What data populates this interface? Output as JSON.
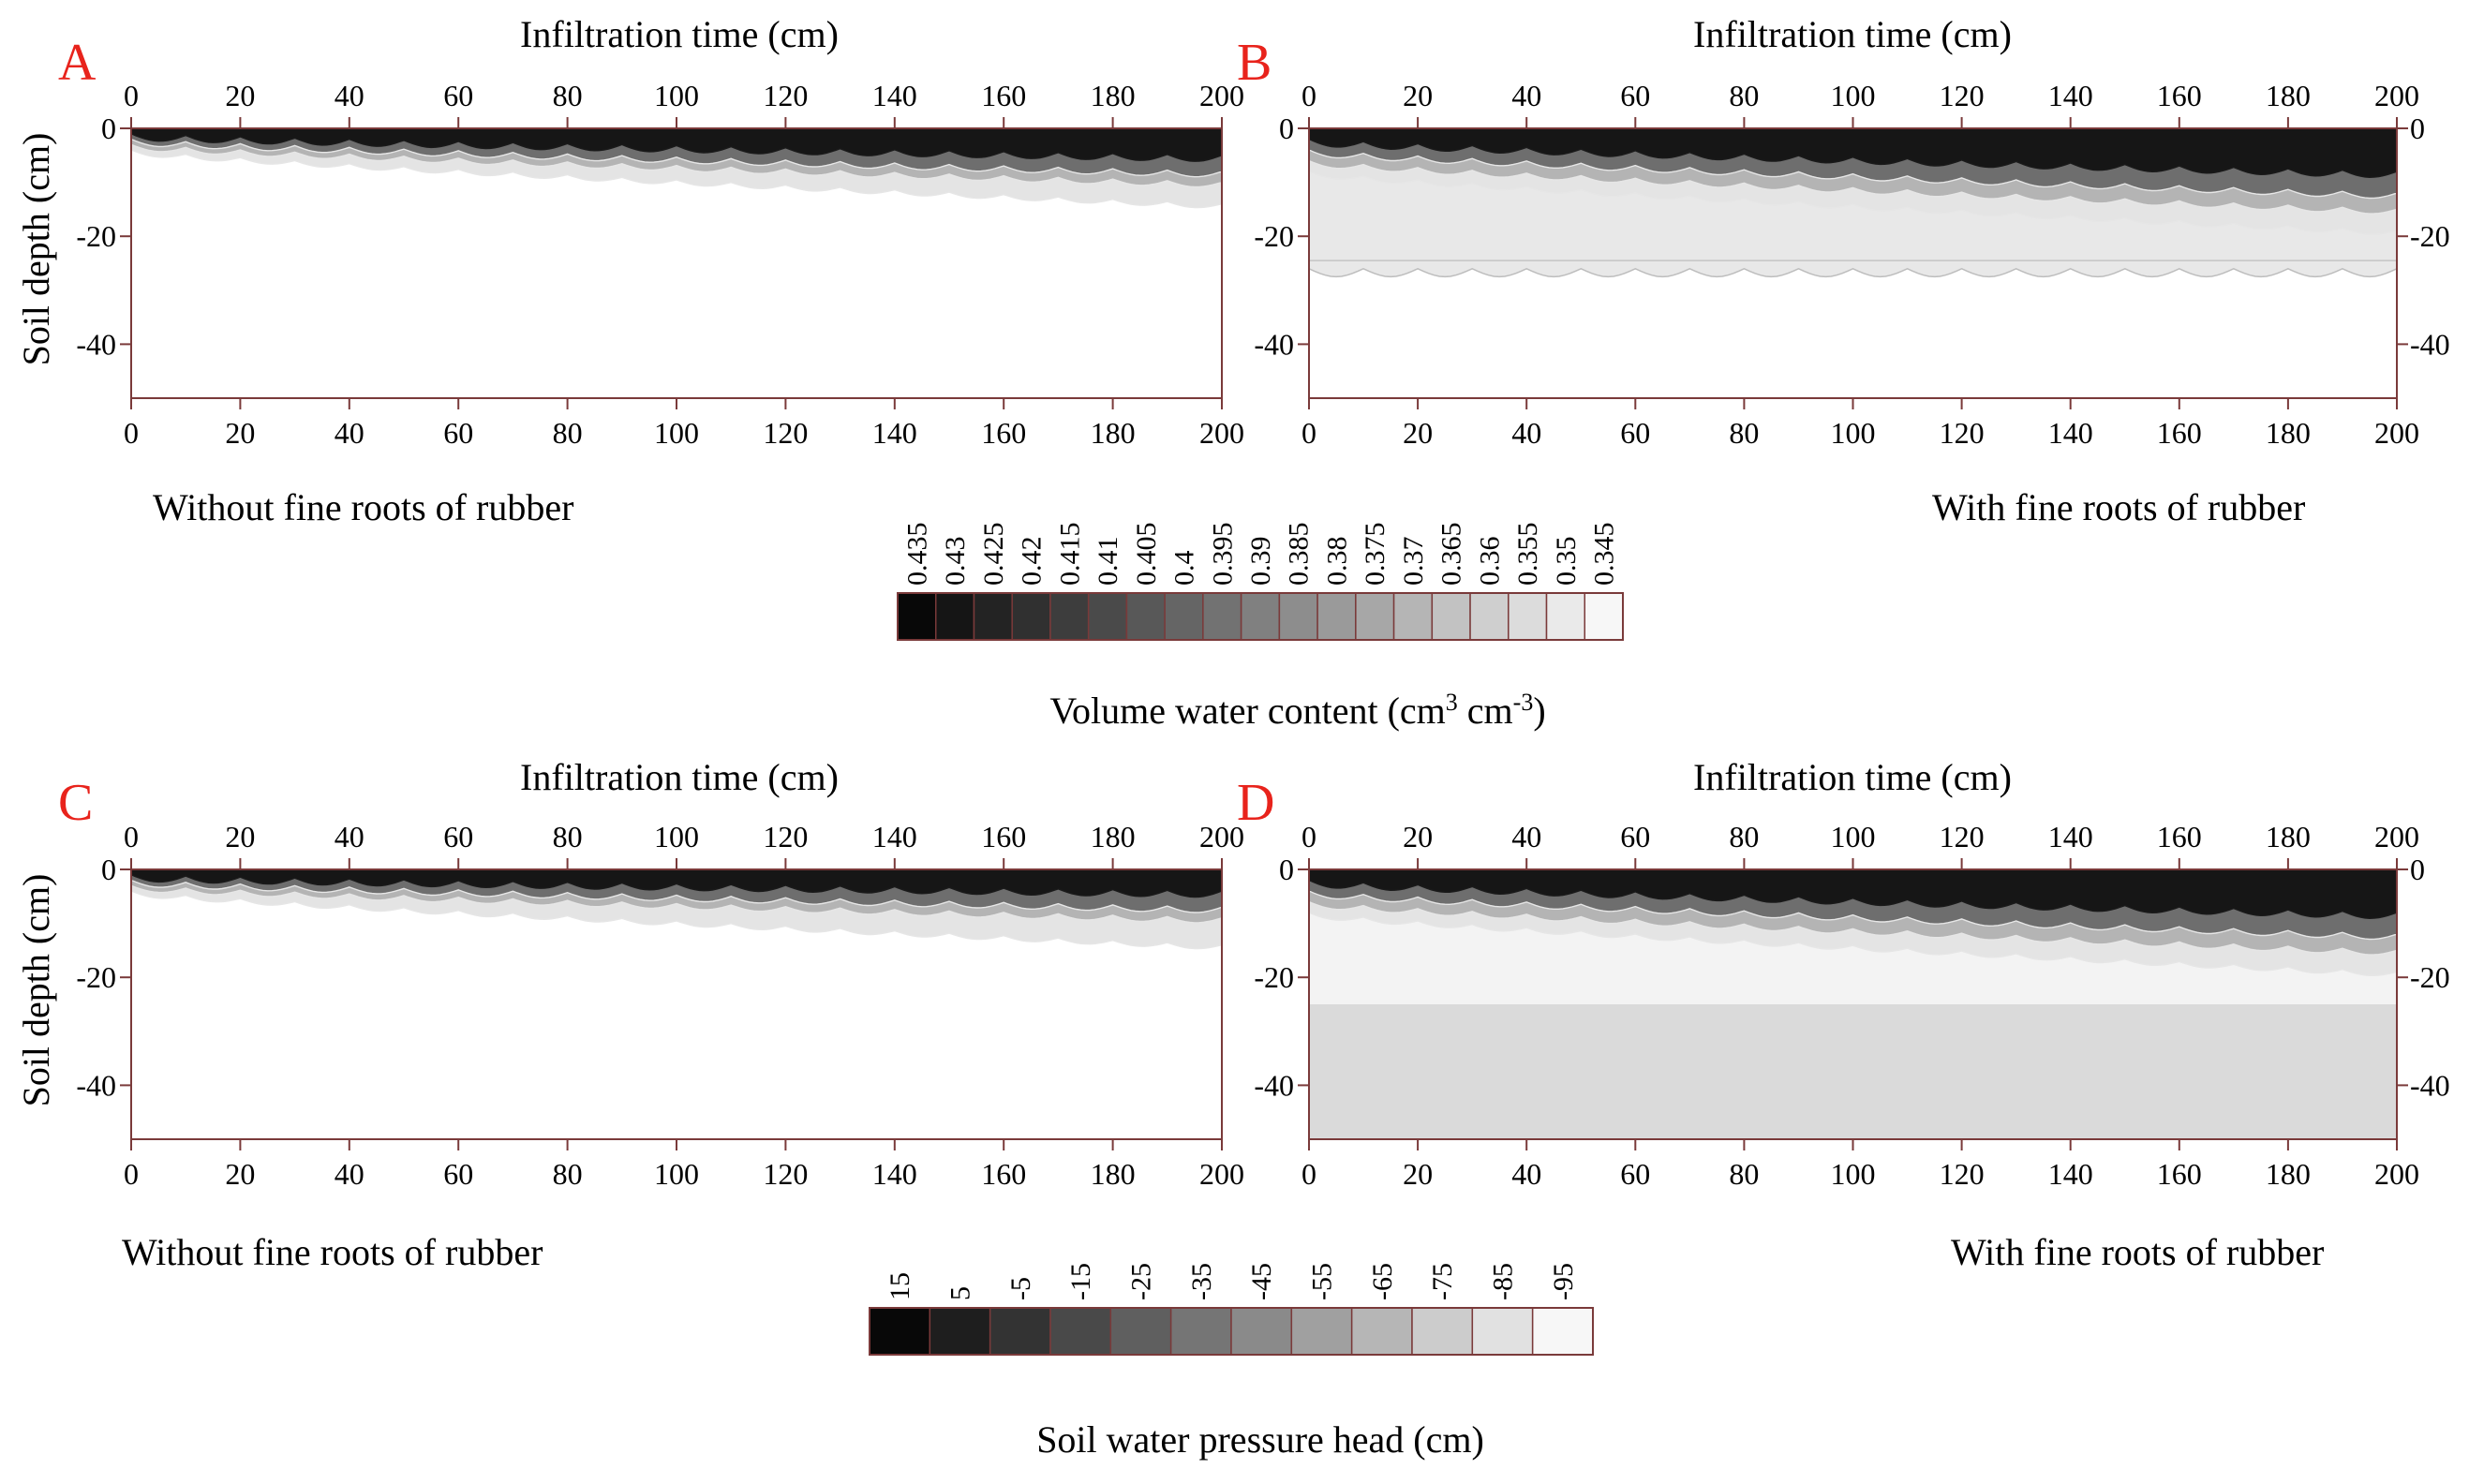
{
  "chart_data": [
    {
      "panel": "A",
      "type": "heatmap",
      "top_label": "Infiltration time (cm)",
      "ylabel": "Soil depth (cm)",
      "caption": "Without fine roots of rubber",
      "xlim": [
        0,
        200
      ],
      "ylim": [
        -50,
        0
      ],
      "x_ticks": [
        "0",
        "20",
        "40",
        "60",
        "80",
        "100",
        "120",
        "140",
        "160",
        "180",
        "200"
      ],
      "y_ticks": [
        "0",
        "-20",
        "-40"
      ],
      "y_tick_values": [
        0,
        -20,
        -40
      ],
      "right_axis": false,
      "legend": "volume_water_content",
      "front": {
        "dark": [
          1,
          5
        ],
        "mid": [
          2,
          8
        ],
        "light": [
          3,
          10
        ],
        "edge": [
          4,
          14
        ]
      },
      "subsoil": null
    },
    {
      "panel": "B",
      "type": "heatmap",
      "top_label": "Infiltration time (cm)",
      "ylabel": "",
      "caption": "With fine roots of rubber",
      "xlim": [
        0,
        200
      ],
      "ylim": [
        -50,
        0
      ],
      "x_ticks": [
        "0",
        "20",
        "40",
        "60",
        "80",
        "100",
        "120",
        "140",
        "160",
        "180",
        "200"
      ],
      "y_ticks": [
        "0",
        "-20",
        "-40"
      ],
      "y_tick_values": [
        0,
        -20,
        -40
      ],
      "right_axis": true,
      "legend": "volume_water_content",
      "front": {
        "dark": [
          2,
          8
        ],
        "mid": [
          4,
          12
        ],
        "light": [
          6,
          15
        ],
        "edge": [
          8,
          19
        ]
      },
      "subsoil": {
        "depth": -26,
        "tone": "light"
      }
    },
    {
      "panel": "C",
      "type": "heatmap",
      "top_label": "Infiltration time (cm)",
      "ylabel": "Soil depth (cm)",
      "caption": "Without fine roots of rubber",
      "xlim": [
        0,
        200
      ],
      "ylim": [
        -50,
        0
      ],
      "x_ticks": [
        "0",
        "20",
        "40",
        "60",
        "80",
        "100",
        "120",
        "140",
        "160",
        "180",
        "200"
      ],
      "y_ticks": [
        "0",
        "-20",
        "-40"
      ],
      "y_tick_values": [
        0,
        -20,
        -40
      ],
      "right_axis": false,
      "legend": "soil_water_pressure_head",
      "front": {
        "dark": [
          1,
          4
        ],
        "mid": [
          2,
          7
        ],
        "light": [
          3,
          9
        ],
        "edge": [
          4,
          14
        ]
      },
      "subsoil": null
    },
    {
      "panel": "D",
      "type": "heatmap",
      "top_label": "Infiltration time (cm)",
      "ylabel": "",
      "caption": "With fine roots of rubber",
      "xlim": [
        0,
        200
      ],
      "ylim": [
        -50,
        0
      ],
      "x_ticks": [
        "0",
        "20",
        "40",
        "60",
        "80",
        "100",
        "120",
        "140",
        "160",
        "180",
        "200"
      ],
      "y_ticks": [
        "0",
        "-20",
        "-40"
      ],
      "y_tick_values": [
        0,
        -20,
        -40
      ],
      "right_axis": true,
      "legend": "soil_water_pressure_head",
      "front": {
        "dark": [
          2,
          8
        ],
        "mid": [
          4,
          12
        ],
        "light": [
          6,
          15
        ],
        "edge": [
          8,
          19
        ]
      },
      "subsoil": {
        "depth": -25,
        "tone": "grey"
      }
    }
  ],
  "legends": {
    "volume_water_content": {
      "values": [
        "0.435",
        "0.43",
        "0.425",
        "0.42",
        "0.415",
        "0.41",
        "0.405",
        "0.4",
        "0.395",
        "0.39",
        "0.385",
        "0.38",
        "0.375",
        "0.37",
        "0.365",
        "0.36",
        "0.355",
        "0.35",
        "0.345"
      ],
      "title": "Volume water content (cm",
      "title_sup1": "3",
      "title_mid": " cm",
      "title_sup2": "-3",
      "title_end": ")"
    },
    "soil_water_pressure_head": {
      "values": [
        "15",
        "5",
        "-5",
        "-15",
        "-25",
        "-35",
        "-45",
        "-55",
        "-65",
        "-75",
        "-85",
        "-95"
      ],
      "title": "Soil water pressure head (cm)"
    }
  },
  "colors": {
    "panel_letter": "#e8231c",
    "axis": "#7a3a3a",
    "contour_light": "#e6e6e6",
    "contour_dark": "#1a1a1a",
    "subsoil_grey": "#dadada",
    "subsoil_light": "#e8e8e8"
  }
}
